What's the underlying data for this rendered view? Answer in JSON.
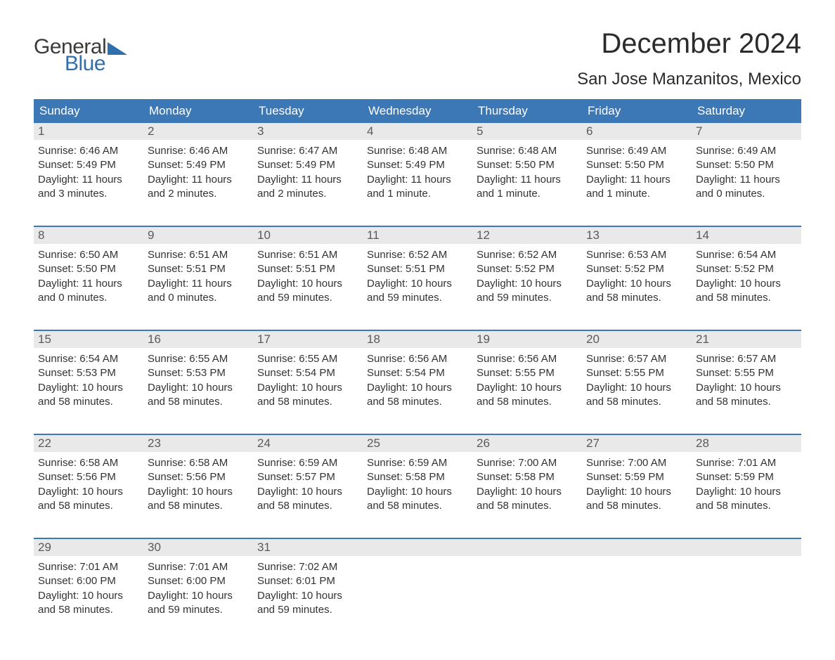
{
  "logo": {
    "word1": "General",
    "word2": "Blue"
  },
  "title": "December 2024",
  "location": "San Jose Manzanitos, Mexico",
  "colors": {
    "header_bg": "#3d78b6",
    "header_text": "#ffffff",
    "daynum_bg": "#e9e9e9",
    "daynum_text": "#5a5a5a",
    "body_text": "#333333",
    "accent": "#2f6fae",
    "logo_gray": "#3b3b3b",
    "page_bg": "#ffffff"
  },
  "typography": {
    "title_fontsize": 40,
    "location_fontsize": 24,
    "dayheader_fontsize": 17,
    "cell_fontsize": 15,
    "logo_fontsize": 30
  },
  "layout": {
    "columns": 7,
    "rows": 5
  },
  "day_labels": [
    "Sunday",
    "Monday",
    "Tuesday",
    "Wednesday",
    "Thursday",
    "Friday",
    "Saturday"
  ],
  "weeks": [
    [
      {
        "n": "1",
        "sunrise": "Sunrise: 6:46 AM",
        "sunset": "Sunset: 5:49 PM",
        "d1": "Daylight: 11 hours",
        "d2": "and 3 minutes."
      },
      {
        "n": "2",
        "sunrise": "Sunrise: 6:46 AM",
        "sunset": "Sunset: 5:49 PM",
        "d1": "Daylight: 11 hours",
        "d2": "and 2 minutes."
      },
      {
        "n": "3",
        "sunrise": "Sunrise: 6:47 AM",
        "sunset": "Sunset: 5:49 PM",
        "d1": "Daylight: 11 hours",
        "d2": "and 2 minutes."
      },
      {
        "n": "4",
        "sunrise": "Sunrise: 6:48 AM",
        "sunset": "Sunset: 5:49 PM",
        "d1": "Daylight: 11 hours",
        "d2": "and 1 minute."
      },
      {
        "n": "5",
        "sunrise": "Sunrise: 6:48 AM",
        "sunset": "Sunset: 5:50 PM",
        "d1": "Daylight: 11 hours",
        "d2": "and 1 minute."
      },
      {
        "n": "6",
        "sunrise": "Sunrise: 6:49 AM",
        "sunset": "Sunset: 5:50 PM",
        "d1": "Daylight: 11 hours",
        "d2": "and 1 minute."
      },
      {
        "n": "7",
        "sunrise": "Sunrise: 6:49 AM",
        "sunset": "Sunset: 5:50 PM",
        "d1": "Daylight: 11 hours",
        "d2": "and 0 minutes."
      }
    ],
    [
      {
        "n": "8",
        "sunrise": "Sunrise: 6:50 AM",
        "sunset": "Sunset: 5:50 PM",
        "d1": "Daylight: 11 hours",
        "d2": "and 0 minutes."
      },
      {
        "n": "9",
        "sunrise": "Sunrise: 6:51 AM",
        "sunset": "Sunset: 5:51 PM",
        "d1": "Daylight: 11 hours",
        "d2": "and 0 minutes."
      },
      {
        "n": "10",
        "sunrise": "Sunrise: 6:51 AM",
        "sunset": "Sunset: 5:51 PM",
        "d1": "Daylight: 10 hours",
        "d2": "and 59 minutes."
      },
      {
        "n": "11",
        "sunrise": "Sunrise: 6:52 AM",
        "sunset": "Sunset: 5:51 PM",
        "d1": "Daylight: 10 hours",
        "d2": "and 59 minutes."
      },
      {
        "n": "12",
        "sunrise": "Sunrise: 6:52 AM",
        "sunset": "Sunset: 5:52 PM",
        "d1": "Daylight: 10 hours",
        "d2": "and 59 minutes."
      },
      {
        "n": "13",
        "sunrise": "Sunrise: 6:53 AM",
        "sunset": "Sunset: 5:52 PM",
        "d1": "Daylight: 10 hours",
        "d2": "and 58 minutes."
      },
      {
        "n": "14",
        "sunrise": "Sunrise: 6:54 AM",
        "sunset": "Sunset: 5:52 PM",
        "d1": "Daylight: 10 hours",
        "d2": "and 58 minutes."
      }
    ],
    [
      {
        "n": "15",
        "sunrise": "Sunrise: 6:54 AM",
        "sunset": "Sunset: 5:53 PM",
        "d1": "Daylight: 10 hours",
        "d2": "and 58 minutes."
      },
      {
        "n": "16",
        "sunrise": "Sunrise: 6:55 AM",
        "sunset": "Sunset: 5:53 PM",
        "d1": "Daylight: 10 hours",
        "d2": "and 58 minutes."
      },
      {
        "n": "17",
        "sunrise": "Sunrise: 6:55 AM",
        "sunset": "Sunset: 5:54 PM",
        "d1": "Daylight: 10 hours",
        "d2": "and 58 minutes."
      },
      {
        "n": "18",
        "sunrise": "Sunrise: 6:56 AM",
        "sunset": "Sunset: 5:54 PM",
        "d1": "Daylight: 10 hours",
        "d2": "and 58 minutes."
      },
      {
        "n": "19",
        "sunrise": "Sunrise: 6:56 AM",
        "sunset": "Sunset: 5:55 PM",
        "d1": "Daylight: 10 hours",
        "d2": "and 58 minutes."
      },
      {
        "n": "20",
        "sunrise": "Sunrise: 6:57 AM",
        "sunset": "Sunset: 5:55 PM",
        "d1": "Daylight: 10 hours",
        "d2": "and 58 minutes."
      },
      {
        "n": "21",
        "sunrise": "Sunrise: 6:57 AM",
        "sunset": "Sunset: 5:55 PM",
        "d1": "Daylight: 10 hours",
        "d2": "and 58 minutes."
      }
    ],
    [
      {
        "n": "22",
        "sunrise": "Sunrise: 6:58 AM",
        "sunset": "Sunset: 5:56 PM",
        "d1": "Daylight: 10 hours",
        "d2": "and 58 minutes."
      },
      {
        "n": "23",
        "sunrise": "Sunrise: 6:58 AM",
        "sunset": "Sunset: 5:56 PM",
        "d1": "Daylight: 10 hours",
        "d2": "and 58 minutes."
      },
      {
        "n": "24",
        "sunrise": "Sunrise: 6:59 AM",
        "sunset": "Sunset: 5:57 PM",
        "d1": "Daylight: 10 hours",
        "d2": "and 58 minutes."
      },
      {
        "n": "25",
        "sunrise": "Sunrise: 6:59 AM",
        "sunset": "Sunset: 5:58 PM",
        "d1": "Daylight: 10 hours",
        "d2": "and 58 minutes."
      },
      {
        "n": "26",
        "sunrise": "Sunrise: 7:00 AM",
        "sunset": "Sunset: 5:58 PM",
        "d1": "Daylight: 10 hours",
        "d2": "and 58 minutes."
      },
      {
        "n": "27",
        "sunrise": "Sunrise: 7:00 AM",
        "sunset": "Sunset: 5:59 PM",
        "d1": "Daylight: 10 hours",
        "d2": "and 58 minutes."
      },
      {
        "n": "28",
        "sunrise": "Sunrise: 7:01 AM",
        "sunset": "Sunset: 5:59 PM",
        "d1": "Daylight: 10 hours",
        "d2": "and 58 minutes."
      }
    ],
    [
      {
        "n": "29",
        "sunrise": "Sunrise: 7:01 AM",
        "sunset": "Sunset: 6:00 PM",
        "d1": "Daylight: 10 hours",
        "d2": "and 58 minutes."
      },
      {
        "n": "30",
        "sunrise": "Sunrise: 7:01 AM",
        "sunset": "Sunset: 6:00 PM",
        "d1": "Daylight: 10 hours",
        "d2": "and 59 minutes."
      },
      {
        "n": "31",
        "sunrise": "Sunrise: 7:02 AM",
        "sunset": "Sunset: 6:01 PM",
        "d1": "Daylight: 10 hours",
        "d2": "and 59 minutes."
      },
      null,
      null,
      null,
      null
    ]
  ]
}
